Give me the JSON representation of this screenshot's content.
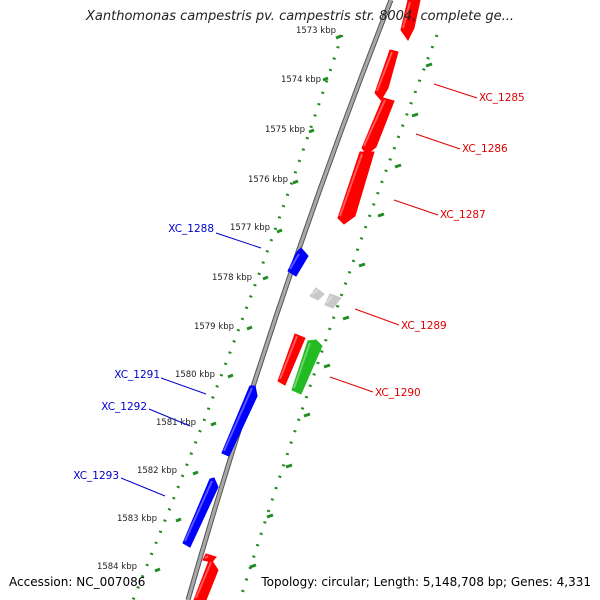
{
  "title": "Xanthomonas campestris pv. campestris str. 8004, complete ge...",
  "accession": "Accession: NC_007086",
  "summary": "Topology: circular; Length: 5,148,708 bp; Genes: 4,331",
  "colors": {
    "forward_gene": "#ff0000",
    "reverse_gene": "#0000ff",
    "pseudo_gene": "#c8c8c8",
    "rna_gene": "#22bb22",
    "backbone": "#888888",
    "tick": "#228b22",
    "forward_label": "#dd0000",
    "reverse_label": "#0000cc"
  },
  "scale_labels": [
    {
      "kbp": 1573,
      "text": "1573 kbp"
    },
    {
      "kbp": 1574,
      "text": "1574 kbp"
    },
    {
      "kbp": 1575,
      "text": "1575 kbp"
    },
    {
      "kbp": 1576,
      "text": "1576 kbp"
    },
    {
      "kbp": 1577,
      "text": "1577 kbp"
    },
    {
      "kbp": 1578,
      "text": "1578 kbp"
    },
    {
      "kbp": 1579,
      "text": "1579 kbp"
    },
    {
      "kbp": 1580,
      "text": "1580 kbp"
    },
    {
      "kbp": 1581,
      "text": "1581 kbp"
    },
    {
      "kbp": 1582,
      "text": "1582 kbp"
    },
    {
      "kbp": 1583,
      "text": "1583 kbp"
    },
    {
      "kbp": 1584,
      "text": "1584 kbp"
    }
  ],
  "genes": [
    {
      "label": "XC_1285",
      "strand": "+",
      "type": "forward"
    },
    {
      "label": "XC_1286",
      "strand": "+",
      "type": "forward"
    },
    {
      "label": "XC_1287",
      "strand": "+",
      "type": "forward"
    },
    {
      "label": "XC_1288",
      "strand": "-",
      "type": "reverse"
    },
    {
      "label": "XC_1289",
      "strand": "+",
      "type": "pseudo"
    },
    {
      "label": "XC_1290",
      "strand": "+",
      "type": "rna"
    },
    {
      "label": "XC_1291",
      "strand": "-",
      "type": "reverse"
    },
    {
      "label": "XC_1292",
      "strand": "-",
      "type": "reverse"
    },
    {
      "label": "XC_1293",
      "strand": "-",
      "type": "reverse"
    }
  ]
}
